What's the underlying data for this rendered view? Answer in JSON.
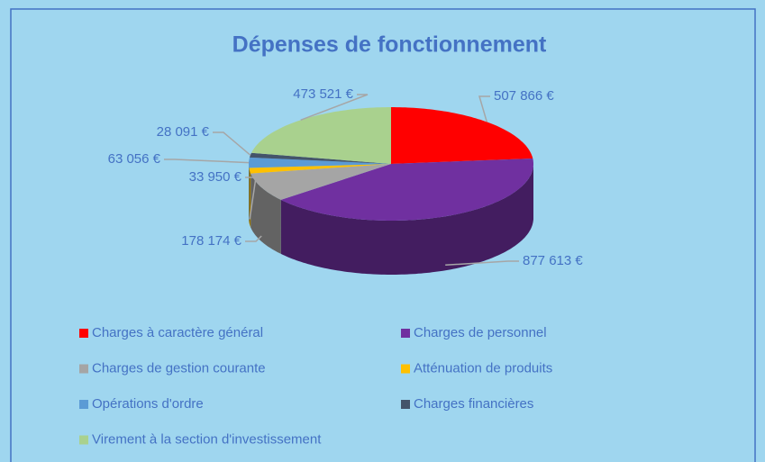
{
  "chart_data": {
    "type": "pie",
    "title": "Dépenses de fonctionnement",
    "categories": [
      "Charges à caractère général",
      "Charges de personnel",
      "Charges de gestion courante",
      "Atténuation de produits",
      "Opérations d'ordre",
      "Charges financières",
      "Virement à la section d'investissement"
    ],
    "values": [
      507866,
      877613,
      178174,
      33950,
      63056,
      28091,
      473521
    ],
    "value_labels": [
      "507 866 €",
      "877 613 €",
      "178 174 €",
      "33 950 €",
      "63 056 €",
      "28 091 €",
      "473 521 €"
    ],
    "colors": [
      "#ff0000",
      "#7030a0",
      "#a5a5a5",
      "#ffc000",
      "#5b9bd5",
      "#44546a",
      "#a9d18e"
    ],
    "legend": "bottom"
  }
}
